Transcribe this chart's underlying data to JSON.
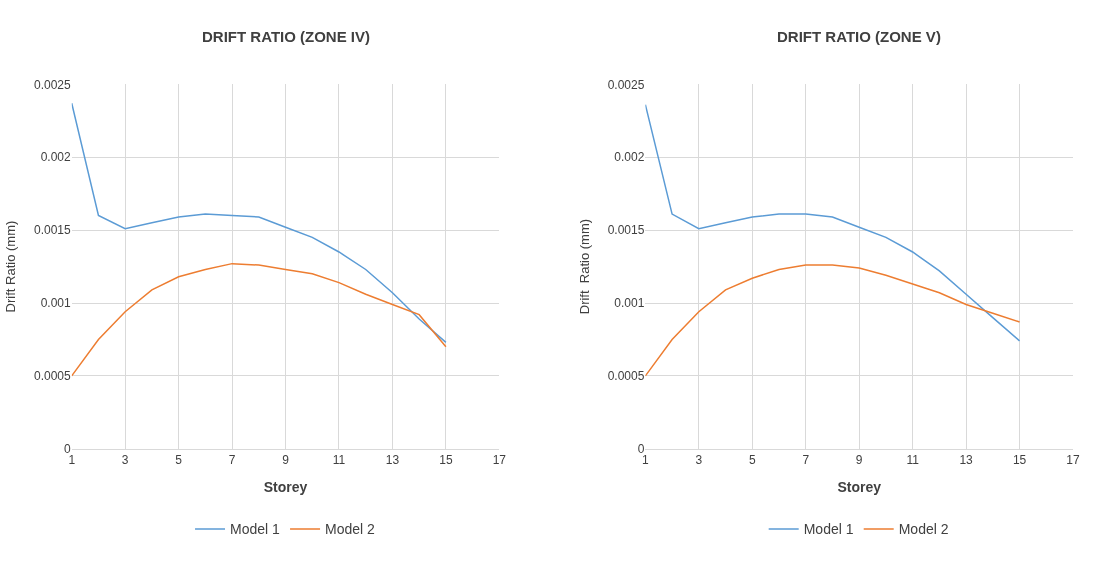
{
  "chart_data": [
    {
      "type": "line",
      "title": "DRIFT RATIO (ZONE IV)",
      "xlabel": "Storey",
      "ylabel": "Drift Ratio (mm)",
      "x": [
        1,
        2,
        3,
        4,
        5,
        6,
        7,
        8,
        9,
        10,
        11,
        12,
        13,
        14,
        15
      ],
      "xlim": [
        1,
        17
      ],
      "xticks": [
        1,
        3,
        5,
        7,
        9,
        11,
        13,
        15,
        17
      ],
      "ylim": [
        0,
        0.0025
      ],
      "yticks": [
        0,
        0.0005,
        0.001,
        0.0015,
        0.002,
        0.0025
      ],
      "grid": true,
      "legend": "bottom",
      "marker": "none",
      "line_style": "solid",
      "series": [
        {
          "name": "Model 1",
          "color": "#5b9bd5",
          "values": [
            0.00237,
            0.0016,
            0.00151,
            0.00155,
            0.00159,
            0.00161,
            0.0016,
            0.00159,
            0.00152,
            0.00145,
            0.00135,
            0.00123,
            0.00107,
            0.00089,
            0.00073
          ]
        },
        {
          "name": "Model 2",
          "color": "#ed7d31",
          "values": [
            0.0005,
            0.00075,
            0.00094,
            0.00109,
            0.00118,
            0.00123,
            0.00127,
            0.00126,
            0.00123,
            0.0012,
            0.00114,
            0.00106,
            0.00099,
            0.00092,
            0.0007
          ]
        }
      ]
    },
    {
      "type": "line",
      "title": "DRIFT RATIO (ZONE V)",
      "xlabel": "Storey",
      "ylabel": "Drift  Ratio (mm)",
      "x": [
        1,
        2,
        3,
        4,
        5,
        6,
        7,
        8,
        9,
        10,
        11,
        12,
        13,
        14,
        15
      ],
      "xlim": [
        1,
        17
      ],
      "xticks": [
        1,
        3,
        5,
        7,
        9,
        11,
        13,
        15,
        17
      ],
      "ylim": [
        0,
        0.0025
      ],
      "yticks": [
        0,
        0.0005,
        0.001,
        0.0015,
        0.002,
        0.0025
      ],
      "grid": true,
      "legend": "bottom",
      "marker": "none",
      "line_style": "solid",
      "series": [
        {
          "name": "Model 1",
          "color": "#5b9bd5",
          "values": [
            0.00236,
            0.00161,
            0.00151,
            0.00155,
            0.00159,
            0.00161,
            0.00161,
            0.00159,
            0.00152,
            0.00145,
            0.00135,
            0.00122,
            0.00106,
            0.0009,
            0.00074
          ]
        },
        {
          "name": "Model 2",
          "color": "#ed7d31",
          "values": [
            0.0005,
            0.00075,
            0.00094,
            0.00109,
            0.00117,
            0.00123,
            0.00126,
            0.00126,
            0.00124,
            0.00119,
            0.00113,
            0.00107,
            0.00099,
            0.00093,
            0.00087
          ]
        }
      ]
    }
  ]
}
